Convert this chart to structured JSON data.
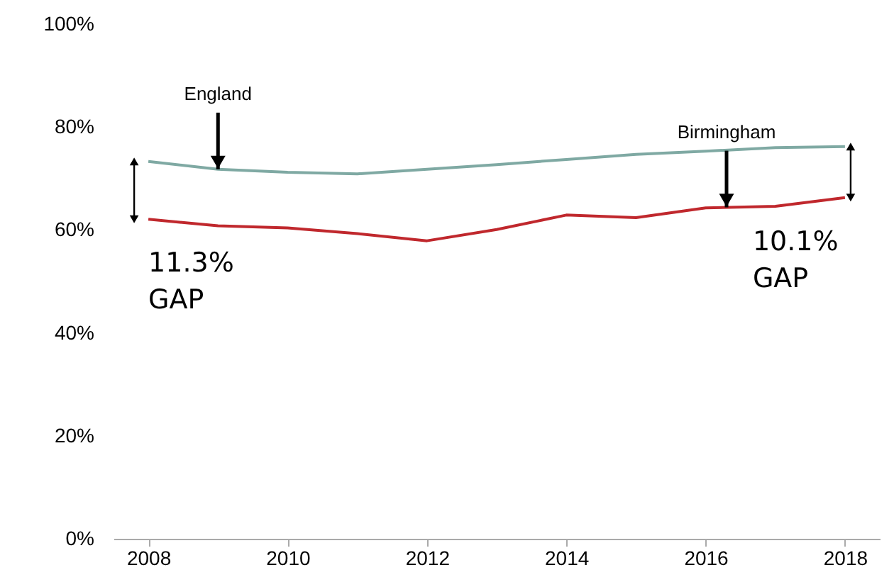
{
  "chart_data": {
    "type": "line",
    "x": [
      2008,
      2009,
      2010,
      2011,
      2012,
      2013,
      2014,
      2015,
      2016,
      2017,
      2018
    ],
    "series": [
      {
        "color": "#7fa9a3",
        "values": [
          73.3,
          71.8,
          71.2,
          70.9,
          71.8,
          72.7,
          73.7,
          74.7,
          75.3,
          76.0,
          76.2
        ]
      },
      {
        "color": "#c0282d",
        "values": [
          62.1,
          60.8,
          60.4,
          59.3,
          57.9,
          60.1,
          62.9,
          62.4,
          64.3,
          64.6,
          66.3
        ]
      }
    ],
    "xlim": [
      2007.5,
      2018.5
    ],
    "xticks": [
      2008,
      2010,
      2012,
      2014,
      2016,
      2018
    ],
    "ylim": [
      0,
      100
    ],
    "yticks": [
      {
        "value": 0,
        "label": "0%"
      },
      {
        "value": 20,
        "label": "20%"
      },
      {
        "value": 40,
        "label": "40%"
      },
      {
        "value": 60,
        "label": "60%"
      },
      {
        "value": 80,
        "label": "80%"
      },
      {
        "value": 100,
        "label": "100%"
      }
    ],
    "annotations": [
      {
        "text": "England",
        "x": 2009,
        "y": 71.8
      },
      {
        "text": "Birmingham",
        "x": 2016.3,
        "y": 64.4
      },
      "11.3%\nGAP",
      "10.1%\nGAP"
    ],
    "grid": false,
    "marker": "none",
    "line_style": "solid"
  }
}
